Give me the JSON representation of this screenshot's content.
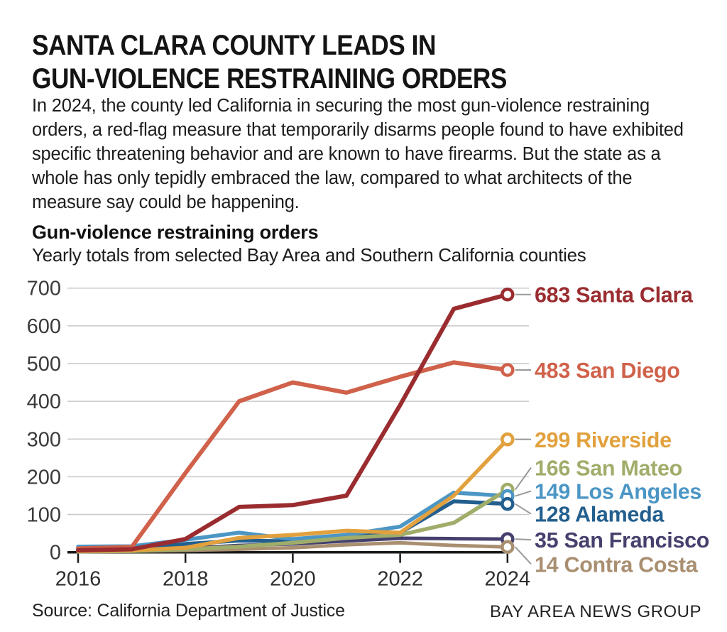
{
  "page": {
    "headline_line1": "SANTA CLARA COUNTY LEADS IN",
    "headline_line2": "GUN-VIOLENCE RESTRAINING ORDERS",
    "intro": "In 2024, the county led California in securing the most gun-violence restraining orders, a red-flag measure that temporarily disarms people found to have exhibited specific threatening behavior and are known to have firearms. But the state as a whole has only tepidly embraced the law, compared to what architects of the measure say could be happening.",
    "source": "Source: California Department of Justice",
    "credit": "BAY AREA NEWS GROUP"
  },
  "chart_data": {
    "type": "line",
    "title": "Gun-violence restraining orders",
    "subtitle": "Yearly totals from selected Bay Area and Southern California counties",
    "x": [
      2016,
      2017,
      2018,
      2019,
      2020,
      2021,
      2022,
      2023,
      2024
    ],
    "xticks": [
      2016,
      2018,
      2020,
      2022,
      2024
    ],
    "ylim": [
      0,
      700
    ],
    "ytick_step": 100,
    "grid": true,
    "legend_position": "right-end-labels",
    "axis_color": "#1a1a1a",
    "grid_color": "#c9c9c9",
    "tick_label_color": "#3a3a3a",
    "leader_color": "#9a9a9a",
    "series": [
      {
        "name": "Santa Clara",
        "end_value": 683,
        "color": "#9a2c2f",
        "width": 6,
        "label_dy": 0,
        "values": [
          5,
          8,
          35,
          120,
          125,
          150,
          390,
          645,
          683
        ]
      },
      {
        "name": "San Diego",
        "end_value": 483,
        "color": "#d0614a",
        "width": 6,
        "label_dy": 0,
        "values": [
          10,
          14,
          210,
          400,
          450,
          423,
          465,
          503,
          483
        ]
      },
      {
        "name": "Riverside",
        "end_value": 299,
        "color": "#e2a13e",
        "width": 5.5,
        "label_dy": 0,
        "values": [
          3,
          5,
          12,
          38,
          46,
          57,
          52,
          150,
          299
        ]
      },
      {
        "name": "San Mateo",
        "end_value": 166,
        "color": "#a0ad6a",
        "width": 5.5,
        "label_dy": -31,
        "values": [
          2,
          3,
          8,
          15,
          25,
          38,
          46,
          78,
          166
        ]
      },
      {
        "name": "Los Angeles",
        "end_value": 149,
        "color": "#4b96c5",
        "width": 5.5,
        "label_dy": -7,
        "values": [
          15,
          16,
          33,
          52,
          35,
          46,
          68,
          158,
          149
        ]
      },
      {
        "name": "Alameda",
        "end_value": 128,
        "color": "#235f8e",
        "width": 5.5,
        "label_dy": 14,
        "values": [
          8,
          9,
          22,
          31,
          29,
          45,
          52,
          135,
          128
        ]
      },
      {
        "name": "San Francisco",
        "end_value": 35,
        "color": "#45406d",
        "width": 5,
        "label_dy": 1,
        "values": [
          4,
          5,
          10,
          18,
          22,
          30,
          37,
          36,
          35
        ]
      },
      {
        "name": "Contra Costa",
        "end_value": 14,
        "color": "#a98f70",
        "width": 5,
        "label_dy": 24,
        "values": [
          2,
          3,
          5,
          8,
          12,
          20,
          25,
          18,
          14
        ]
      }
    ]
  }
}
